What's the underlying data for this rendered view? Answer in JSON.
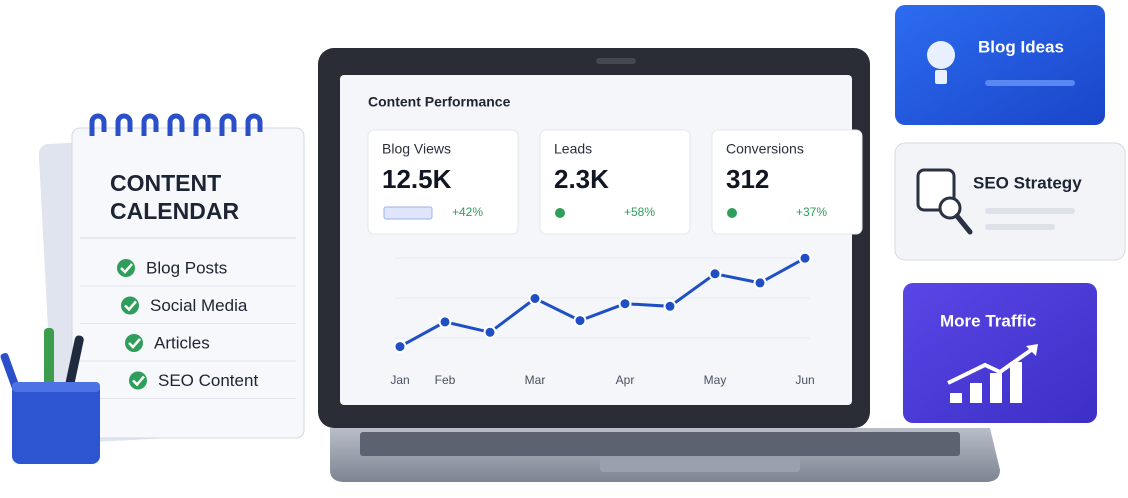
{
  "calendar": {
    "title": [
      "CONTENT",
      "CALENDAR"
    ],
    "items": [
      "Blog Posts",
      "Social Media",
      "Articles",
      "SEO Content"
    ]
  },
  "dashboard": {
    "title": "Content Performance",
    "metrics": [
      {
        "label": "Blog Views",
        "value": "12.5K",
        "change": "+42%"
      },
      {
        "label": "Leads",
        "value": "2.3K",
        "change": "+58%"
      },
      {
        "label": "Conversions",
        "value": "312",
        "change": "+37%"
      }
    ]
  },
  "chart_data": {
    "type": "line",
    "categories": [
      "Jan",
      "Feb",
      null,
      "Mar",
      null,
      "Apr",
      null,
      "May",
      null,
      "Jun"
    ],
    "values": [
      18,
      37,
      29,
      55,
      38,
      51,
      49,
      74,
      67,
      86
    ],
    "ylim": [
      0,
      100
    ],
    "color": "#1f4fc4"
  },
  "cards": [
    "Blog Ideas",
    "SEO Strategy",
    "More Traffic"
  ]
}
